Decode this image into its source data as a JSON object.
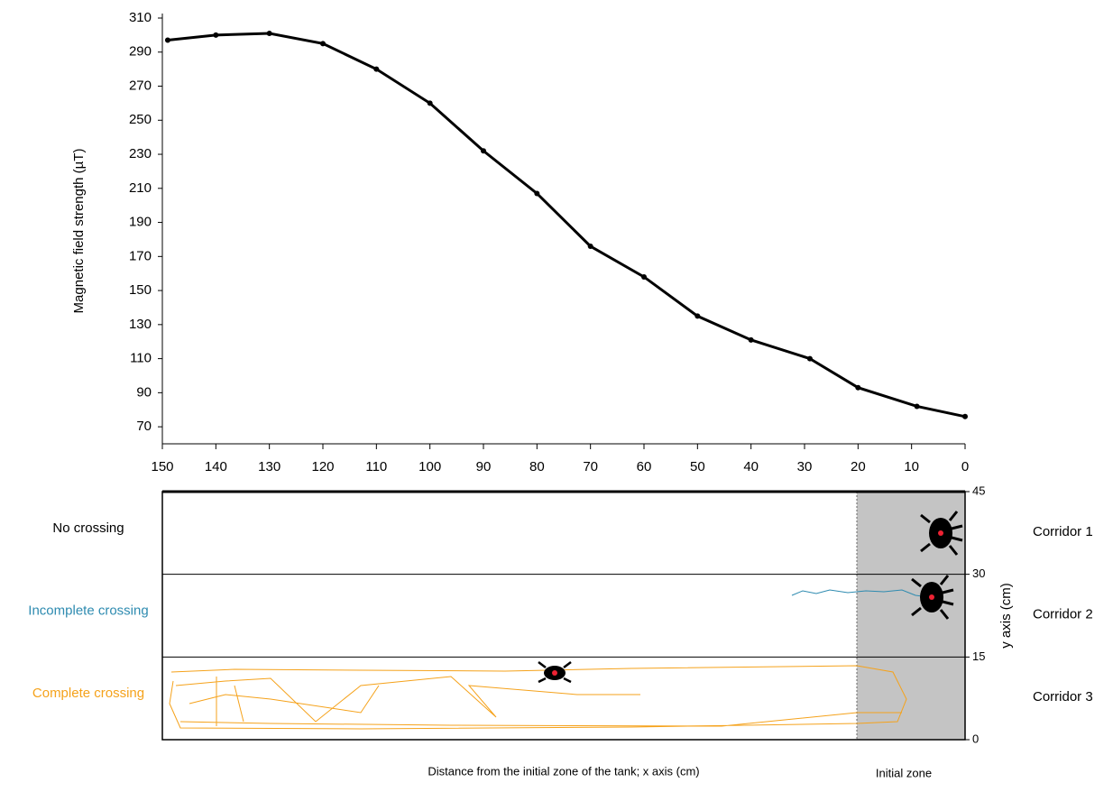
{
  "chart_data": [
    {
      "type": "line",
      "ylabel": "Magnetic field strength (µT)",
      "x": [
        149,
        140,
        130,
        120,
        110,
        100,
        90,
        80,
        70,
        60,
        50,
        40,
        29,
        20,
        9,
        0
      ],
      "values": [
        297,
        300,
        301,
        295,
        280,
        260,
        232,
        207,
        176,
        158,
        135,
        121,
        110,
        93,
        82,
        76
      ],
      "color": "#000000",
      "xlim": [
        150,
        0
      ],
      "xticks": [
        150,
        140,
        130,
        120,
        110,
        100,
        90,
        80,
        70,
        60,
        50,
        40,
        30,
        20,
        10,
        0
      ],
      "ylim": [
        60,
        310
      ],
      "yticks": [
        70,
        90,
        110,
        130,
        150,
        170,
        190,
        210,
        230,
        250,
        270,
        290,
        310
      ]
    },
    {
      "type": "tracks",
      "xlabel": "Distance from the initial zone of the tank; x axis (cm)",
      "zone_label": "Initial zone",
      "ylabel": "y axis (cm)",
      "ylim": [
        0,
        45
      ],
      "yticks": [
        0,
        15,
        30,
        45
      ],
      "rows": [
        {
          "name": "No crossing",
          "color": "#000000"
        },
        {
          "name": "Incomplete crossing",
          "color": "#2e8bb0"
        },
        {
          "name": "Complete crossing",
          "color": "#f5a21b"
        }
      ],
      "corridors": [
        "Corridor 1",
        "Corridor 2",
        "Corridor 3"
      ]
    }
  ]
}
